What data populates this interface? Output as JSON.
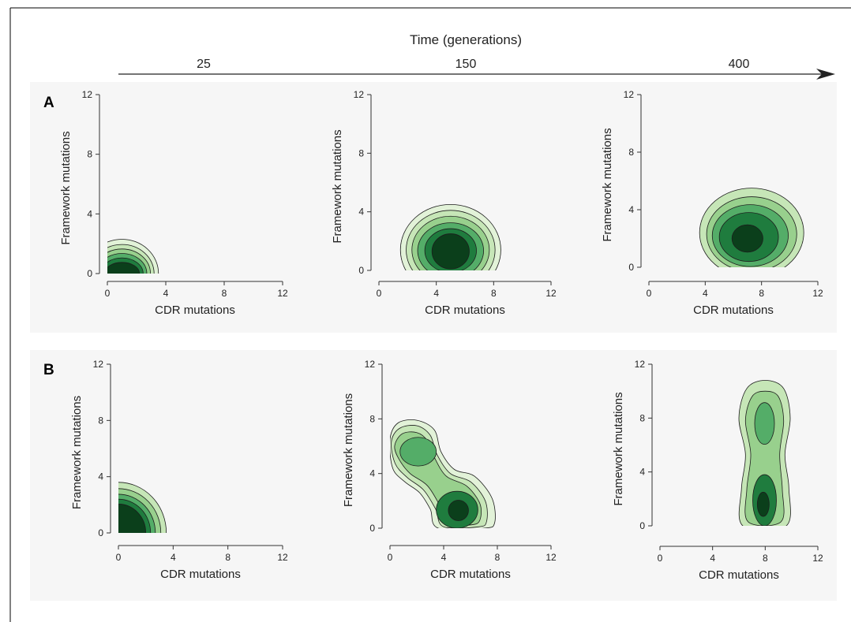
{
  "time_axis": {
    "title": "Time (generations)",
    "labels": [
      "25",
      "150",
      "400"
    ]
  },
  "colors": {
    "panel_background": "#f6f6f6",
    "contour_levels": [
      "#e2f2d8",
      "#c6e6b7",
      "#98d08d",
      "#54ad68",
      "#1f7c3e",
      "#0b3f1b"
    ],
    "contour_stroke": "#1d1d1d"
  },
  "chart_data": [
    {
      "type": "contour",
      "row_label": "A",
      "xlabel": "CDR mutations",
      "ylabel": "Framework mutations",
      "xlim": [
        0,
        12
      ],
      "ylim": [
        0,
        12
      ],
      "xticks": [
        "0",
        "4",
        "8",
        "12"
      ],
      "yticks": [
        "0",
        "4",
        "8",
        "12"
      ],
      "panels": [
        {
          "time": "25",
          "peak": [
            1.0,
            0.2
          ],
          "levels": [
            {
              "cx": 1.0,
              "cy": 0,
              "rx": 2.5,
              "ry": 2.3
            },
            {
              "cx": 1.0,
              "cy": 0,
              "rx": 2.2,
              "ry": 1.95
            },
            {
              "cx": 1.0,
              "cy": 0,
              "rx": 1.95,
              "ry": 1.65
            },
            {
              "cx": 1.0,
              "cy": 0,
              "rx": 1.7,
              "ry": 1.35
            },
            {
              "cx": 1.0,
              "cy": 0,
              "rx": 1.45,
              "ry": 1.05
            },
            {
              "cx": 1.0,
              "cy": 0,
              "rx": 1.2,
              "ry": 0.75
            }
          ]
        },
        {
          "time": "150",
          "peak": [
            5.0,
            1.3
          ],
          "levels": [
            {
              "cx": 5.0,
              "cy": 1.4,
              "rx": 3.5,
              "ry": 3.1
            },
            {
              "cx": 5.0,
              "cy": 1.4,
              "rx": 3.1,
              "ry": 2.7
            },
            {
              "cx": 5.0,
              "cy": 1.4,
              "rx": 2.7,
              "ry": 2.3
            },
            {
              "cx": 5.0,
              "cy": 1.35,
              "rx": 2.3,
              "ry": 1.9
            },
            {
              "cx": 5.0,
              "cy": 1.35,
              "rx": 1.8,
              "ry": 1.5
            },
            {
              "cx": 5.0,
              "cy": 1.3,
              "rx": 1.3,
              "ry": 1.2
            }
          ]
        },
        {
          "time": "400",
          "peak": [
            7.0,
            2.0
          ],
          "levels": [
            {
              "cx": 7.3,
              "cy": 2.4,
              "rx": 3.7,
              "ry": 3.1
            },
            {
              "cx": 7.3,
              "cy": 2.3,
              "rx": 3.2,
              "ry": 2.6
            },
            {
              "cx": 7.2,
              "cy": 2.2,
              "rx": 2.7,
              "ry": 2.15
            },
            {
              "cx": 7.1,
              "cy": 2.1,
              "rx": 2.1,
              "ry": 1.7
            },
            {
              "cx": 7.0,
              "cy": 2.0,
              "rx": 1.1,
              "ry": 0.95
            }
          ]
        }
      ]
    },
    {
      "type": "contour",
      "row_label": "B",
      "xlabel": "CDR mutations",
      "ylabel": "Framework mutations",
      "xlim": [
        0,
        12
      ],
      "ylim": [
        0,
        12
      ],
      "xticks": [
        "0",
        "4",
        "8",
        "12"
      ],
      "yticks": [
        "0",
        "4",
        "8",
        "12"
      ],
      "panels": [
        {
          "time": "25",
          "peak": [
            0.5,
            0.3
          ],
          "levels": [
            {
              "cx": 0,
              "cy": 0,
              "rx": 3.5,
              "ry": 3.6
            },
            {
              "cx": 0,
              "cy": 0,
              "rx": 3.1,
              "ry": 3.15
            },
            {
              "cx": 0,
              "cy": 0,
              "rx": 2.7,
              "ry": 2.75
            },
            {
              "cx": 0,
              "cy": 0,
              "rx": 2.35,
              "ry": 2.4
            },
            {
              "cx": 0,
              "cy": 0,
              "rx": 2.0,
              "ry": 2.05
            }
          ]
        },
        {
          "time": "150",
          "peak_high": [
            2.0,
            5.5
          ],
          "peak_low": [
            5.0,
            1.3
          ],
          "levels": [
            {
              "poly": [
                [
                  0,
                  6.5
                ],
                [
                  0.6,
                  7.7
                ],
                [
                  2,
                  7.9
                ],
                [
                  3.3,
                  7.2
                ],
                [
                  3.8,
                  5.6
                ],
                [
                  4.8,
                  4.3
                ],
                [
                  6.3,
                  3.8
                ],
                [
                  7.6,
                  2.2
                ],
                [
                  7.8,
                  0.4
                ],
                [
                  7.0,
                  0
                ],
                [
                  3.6,
                  0
                ],
                [
                  3.0,
                  1.4
                ],
                [
                  2.2,
                  2.6
                ],
                [
                  1.1,
                  3.4
                ],
                [
                  0.2,
                  4.4
                ]
              ]
            },
            {
              "poly": [
                [
                  0.1,
                  6.3
                ],
                [
                  0.7,
                  7.3
                ],
                [
                  2,
                  7.5
                ],
                [
                  3.0,
                  6.8
                ],
                [
                  3.5,
                  5.4
                ],
                [
                  4.5,
                  4.0
                ],
                [
                  6.0,
                  3.4
                ],
                [
                  7.1,
                  2.0
                ],
                [
                  7.2,
                  0.5
                ],
                [
                  6.6,
                  0.1
                ],
                [
                  4.0,
                  0.1
                ],
                [
                  3.4,
                  1.4
                ],
                [
                  2.5,
                  2.8
                ],
                [
                  1.3,
                  3.7
                ],
                [
                  0.4,
                  4.7
                ]
              ]
            },
            {
              "poly": [
                [
                  0.35,
                  6.0
                ],
                [
                  0.9,
                  6.9
                ],
                [
                  2,
                  7.0
                ],
                [
                  2.8,
                  6.4
                ],
                [
                  3.3,
                  5.2
                ],
                [
                  4.2,
                  3.8
                ],
                [
                  5.7,
                  3.1
                ],
                [
                  6.7,
                  1.8
                ],
                [
                  6.7,
                  0.6
                ],
                [
                  6.1,
                  0.25
                ],
                [
                  4.4,
                  0.3
                ],
                [
                  3.8,
                  1.5
                ],
                [
                  2.8,
                  3.1
                ],
                [
                  1.5,
                  4.0
                ],
                [
                  0.7,
                  5.0
                ]
              ]
            },
            {
              "cx": 2.1,
              "cy": 5.6,
              "rx": 1.35,
              "ry": 1.05
            },
            {
              "cx": 5.0,
              "cy": 1.35,
              "rx": 1.55,
              "ry": 1.35
            },
            {
              "cx": 5.1,
              "cy": 1.3,
              "rx": 0.75,
              "ry": 0.75
            }
          ]
        },
        {
          "time": "400",
          "peak_high": [
            7.9,
            7.5
          ],
          "peak_low": [
            7.9,
            1.5
          ],
          "levels": [
            {
              "poly": [
                [
                  6.3,
                  0
                ],
                [
                  6.2,
                  2.8
                ],
                [
                  6.5,
                  5.3
                ],
                [
                  6.0,
                  8.0
                ],
                [
                  6.6,
                  10.2
                ],
                [
                  8.0,
                  10.8
                ],
                [
                  9.4,
                  10.2
                ],
                [
                  9.9,
                  8.0
                ],
                [
                  9.5,
                  5.3
                ],
                [
                  9.8,
                  2.8
                ],
                [
                  9.6,
                  0
                ]
              ]
            },
            {
              "poly": [
                [
                  6.7,
                  0.3
                ],
                [
                  6.6,
                  2.7
                ],
                [
                  6.9,
                  5.3
                ],
                [
                  6.5,
                  7.8
                ],
                [
                  7.0,
                  9.6
                ],
                [
                  8.0,
                  10.0
                ],
                [
                  9.0,
                  9.6
                ],
                [
                  9.4,
                  7.8
                ],
                [
                  9.1,
                  5.3
                ],
                [
                  9.3,
                  2.7
                ],
                [
                  9.2,
                  0.3
                ]
              ]
            },
            {
              "cx": 7.95,
              "cy": 7.6,
              "rx": 0.75,
              "ry": 1.55
            },
            {
              "cx": 7.95,
              "cy": 1.9,
              "rx": 0.9,
              "ry": 1.9
            },
            {
              "cx": 7.85,
              "cy": 1.6,
              "rx": 0.45,
              "ry": 0.9
            }
          ]
        }
      ]
    }
  ]
}
